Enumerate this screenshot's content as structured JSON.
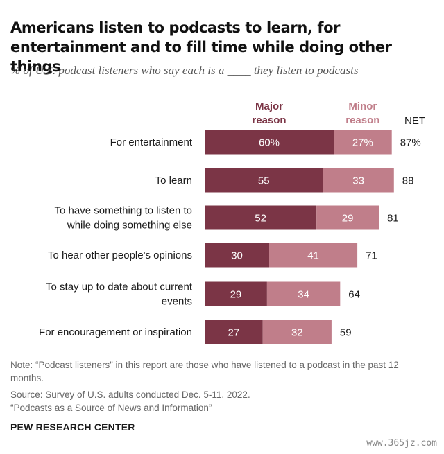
{
  "title": "Americans listen to podcasts to learn, for entertainment and to fill time while doing other things",
  "subtitle": "% of U.S. podcast listeners who say each is a ____ they listen to podcasts",
  "chart_data": {
    "type": "bar",
    "orientation": "horizontal",
    "stacked": true,
    "categories": [
      [
        "For entertainment"
      ],
      [
        "To learn"
      ],
      [
        "To have something to listen to",
        "while doing something else"
      ],
      [
        "To hear other people's opinions"
      ],
      [
        "To stay up to date about current",
        "events"
      ],
      [
        "For encouragement or inspiration"
      ]
    ],
    "series": [
      {
        "name": "Major reason",
        "label_lines": [
          "Major",
          "reason"
        ],
        "color": "#7b3546",
        "values": [
          60,
          55,
          52,
          30,
          29,
          27
        ],
        "labels": [
          "60%",
          "55",
          "52",
          "30",
          "29",
          "27"
        ]
      },
      {
        "name": "Minor reason",
        "label_lines": [
          "Minor",
          "reason"
        ],
        "color": "#c07e8a",
        "values": [
          27,
          33,
          29,
          41,
          34,
          32
        ],
        "labels": [
          "27%",
          "33",
          "29",
          "41",
          "34",
          "32"
        ]
      }
    ],
    "net": {
      "header": "NET",
      "values": [
        87,
        88,
        81,
        71,
        64,
        59
      ],
      "labels": [
        "87%",
        "88",
        "81",
        "71",
        "64",
        "59"
      ]
    },
    "xlim": [
      0,
      100
    ],
    "legend": "top, above bars"
  },
  "note": "Note: “Podcast listeners” in this report are those who have listened to a podcast in the past 12 months.",
  "source": "Source: Survey of U.S. adults conducted Dec. 5-11, 2022.",
  "source_title": "“Podcasts as a Source of News and Information”",
  "org": "PEW RESEARCH CENTER",
  "watermark": "www.365jz.com"
}
